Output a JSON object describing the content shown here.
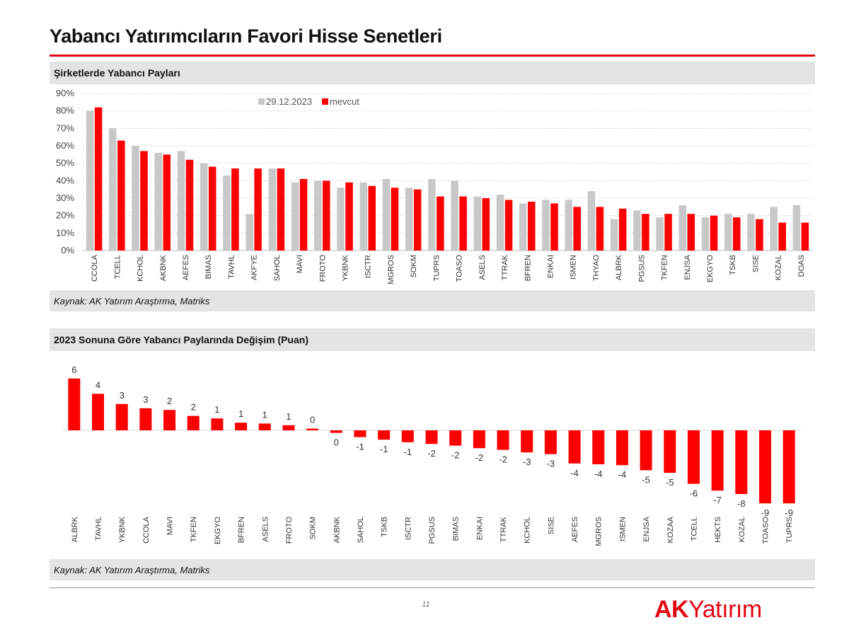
{
  "page": {
    "title": "Yabancı Yatırımcıların Favori Hisse Senetleri",
    "page_number": "11",
    "logo": {
      "ak": "AK",
      "rest": "Yatırım"
    }
  },
  "sections": {
    "top": {
      "title": "Şirketlerde Yabancı Payları",
      "source": "Kaynak: AK Yatırım Araştırma, Matriks"
    },
    "bottom": {
      "title": "2023 Sonuna Göre Yabancı Paylarında Değişim (Puan)",
      "source": "Kaynak: AK Yatırım Araştırma, Matriks"
    }
  },
  "colors": {
    "accent": "#e30613",
    "bar_gray": "#c8c8c8",
    "bar_red": "#ff0000"
  },
  "chart_data": [
    {
      "type": "bar",
      "title": "Şirketlerde Yabancı Payları",
      "categories": [
        "CCOLA",
        "TCELL",
        "KCHOL",
        "AKBNK",
        "AEFES",
        "BIMAS",
        "TAVHL",
        "AKFYE",
        "SAHOL",
        "MAVI",
        "FROTO",
        "YKBNK",
        "ISCTR",
        "MGROS",
        "SOKM",
        "TUPRS",
        "TOASO",
        "ASELS",
        "TTRAK",
        "BFREN",
        "ENKAI",
        "ISMEN",
        "THYAO",
        "ALBRK",
        "PGSUS",
        "TKFEN",
        "ENJSA",
        "EKGYO",
        "TSKB",
        "SISE",
        "KOZAL",
        "DOAS"
      ],
      "series": [
        {
          "name": "29.12.2023",
          "values": [
            80,
            70,
            60,
            56,
            57,
            50,
            43,
            21,
            47,
            39,
            40,
            36,
            39,
            41,
            36,
            41,
            40,
            31,
            32,
            27,
            29,
            29,
            34,
            18,
            23,
            19,
            26,
            19,
            21,
            21,
            25,
            26
          ]
        },
        {
          "name": "mevcut",
          "values": [
            82,
            63,
            57,
            55,
            52,
            48,
            47,
            47,
            47,
            41,
            40,
            39,
            37,
            36,
            35,
            31,
            31,
            30,
            29,
            28,
            27,
            25,
            25,
            24,
            21,
            21,
            21,
            20,
            19,
            18,
            16,
            16
          ]
        }
      ],
      "yticks": [
        "0%",
        "10%",
        "20%",
        "30%",
        "40%",
        "50%",
        "60%",
        "70%",
        "80%",
        "90%"
      ],
      "ylim": [
        0,
        90
      ],
      "legend": "top-center",
      "grid": true
    },
    {
      "type": "bar",
      "title": "2023 Sonuna Göre Yabancı Paylarında Değişim (Puan)",
      "categories": [
        "ALBRK",
        "TAVHL",
        "YKBNK",
        "CCOLA",
        "MAVI",
        "TKFEN",
        "EKGYO",
        "BFREN",
        "ASELS",
        "FROTO",
        "SOKM",
        "AKBNK",
        "SAHOL",
        "TSKB",
        "ISCTR",
        "PGSUS",
        "BIMAS",
        "ENKAI",
        "TTRAK",
        "KCHOL",
        "SISE",
        "AEFES",
        "MGROS",
        "ISMEN",
        "ENJSA",
        "KOZAA",
        "TCELL",
        "HEKTS",
        "KOZAL",
        "TOASO",
        "TUPRS"
      ],
      "values": [
        6.1,
        4.3,
        3.1,
        2.6,
        2.4,
        1.7,
        1.4,
        0.9,
        0.8,
        0.6,
        0.2,
        -0.3,
        -0.8,
        -1.1,
        -1.4,
        -1.6,
        -1.8,
        -2.1,
        -2.3,
        -2.6,
        -2.8,
        -3.9,
        -4.0,
        -4.1,
        -4.7,
        -5.0,
        -6.3,
        -7.1,
        -7.5,
        -8.6,
        -8.6
      ],
      "labels": [
        "6",
        "4",
        "3",
        "3",
        "2",
        "2",
        "1",
        "1",
        "1",
        "1",
        "0",
        "0",
        "-1",
        "-1",
        "-1",
        "-2",
        "-2",
        "-2",
        "-2",
        "-3",
        "-3",
        "-4",
        "-4",
        "-4",
        "-5",
        "-5",
        "-6",
        "-7",
        "-8",
        "-9",
        "-9"
      ],
      "ylim": [
        -9,
        6.5
      ]
    }
  ]
}
